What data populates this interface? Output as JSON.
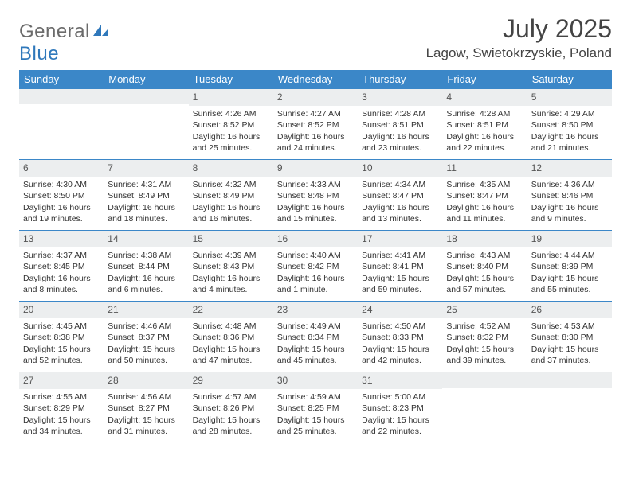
{
  "brand": {
    "general": "General",
    "blue": "Blue"
  },
  "title": "July 2025",
  "location": "Lagow, Swietokrzyskie, Poland",
  "colors": {
    "header_bg": "#3b87c8",
    "header_text": "#ffffff",
    "daynum_bg": "#eceeef",
    "rule": "#3b87c8",
    "logo_gray": "#6b6b6b",
    "logo_blue": "#2f78bb"
  },
  "weekdays": [
    "Sunday",
    "Monday",
    "Tuesday",
    "Wednesday",
    "Thursday",
    "Friday",
    "Saturday"
  ],
  "weeks": [
    [
      null,
      null,
      {
        "n": "1",
        "sr": "Sunrise: 4:26 AM",
        "ss": "Sunset: 8:52 PM",
        "dl": "Daylight: 16 hours and 25 minutes."
      },
      {
        "n": "2",
        "sr": "Sunrise: 4:27 AM",
        "ss": "Sunset: 8:52 PM",
        "dl": "Daylight: 16 hours and 24 minutes."
      },
      {
        "n": "3",
        "sr": "Sunrise: 4:28 AM",
        "ss": "Sunset: 8:51 PM",
        "dl": "Daylight: 16 hours and 23 minutes."
      },
      {
        "n": "4",
        "sr": "Sunrise: 4:28 AM",
        "ss": "Sunset: 8:51 PM",
        "dl": "Daylight: 16 hours and 22 minutes."
      },
      {
        "n": "5",
        "sr": "Sunrise: 4:29 AM",
        "ss": "Sunset: 8:50 PM",
        "dl": "Daylight: 16 hours and 21 minutes."
      }
    ],
    [
      {
        "n": "6",
        "sr": "Sunrise: 4:30 AM",
        "ss": "Sunset: 8:50 PM",
        "dl": "Daylight: 16 hours and 19 minutes."
      },
      {
        "n": "7",
        "sr": "Sunrise: 4:31 AM",
        "ss": "Sunset: 8:49 PM",
        "dl": "Daylight: 16 hours and 18 minutes."
      },
      {
        "n": "8",
        "sr": "Sunrise: 4:32 AM",
        "ss": "Sunset: 8:49 PM",
        "dl": "Daylight: 16 hours and 16 minutes."
      },
      {
        "n": "9",
        "sr": "Sunrise: 4:33 AM",
        "ss": "Sunset: 8:48 PM",
        "dl": "Daylight: 16 hours and 15 minutes."
      },
      {
        "n": "10",
        "sr": "Sunrise: 4:34 AM",
        "ss": "Sunset: 8:47 PM",
        "dl": "Daylight: 16 hours and 13 minutes."
      },
      {
        "n": "11",
        "sr": "Sunrise: 4:35 AM",
        "ss": "Sunset: 8:47 PM",
        "dl": "Daylight: 16 hours and 11 minutes."
      },
      {
        "n": "12",
        "sr": "Sunrise: 4:36 AM",
        "ss": "Sunset: 8:46 PM",
        "dl": "Daylight: 16 hours and 9 minutes."
      }
    ],
    [
      {
        "n": "13",
        "sr": "Sunrise: 4:37 AM",
        "ss": "Sunset: 8:45 PM",
        "dl": "Daylight: 16 hours and 8 minutes."
      },
      {
        "n": "14",
        "sr": "Sunrise: 4:38 AM",
        "ss": "Sunset: 8:44 PM",
        "dl": "Daylight: 16 hours and 6 minutes."
      },
      {
        "n": "15",
        "sr": "Sunrise: 4:39 AM",
        "ss": "Sunset: 8:43 PM",
        "dl": "Daylight: 16 hours and 4 minutes."
      },
      {
        "n": "16",
        "sr": "Sunrise: 4:40 AM",
        "ss": "Sunset: 8:42 PM",
        "dl": "Daylight: 16 hours and 1 minute."
      },
      {
        "n": "17",
        "sr": "Sunrise: 4:41 AM",
        "ss": "Sunset: 8:41 PM",
        "dl": "Daylight: 15 hours and 59 minutes."
      },
      {
        "n": "18",
        "sr": "Sunrise: 4:43 AM",
        "ss": "Sunset: 8:40 PM",
        "dl": "Daylight: 15 hours and 57 minutes."
      },
      {
        "n": "19",
        "sr": "Sunrise: 4:44 AM",
        "ss": "Sunset: 8:39 PM",
        "dl": "Daylight: 15 hours and 55 minutes."
      }
    ],
    [
      {
        "n": "20",
        "sr": "Sunrise: 4:45 AM",
        "ss": "Sunset: 8:38 PM",
        "dl": "Daylight: 15 hours and 52 minutes."
      },
      {
        "n": "21",
        "sr": "Sunrise: 4:46 AM",
        "ss": "Sunset: 8:37 PM",
        "dl": "Daylight: 15 hours and 50 minutes."
      },
      {
        "n": "22",
        "sr": "Sunrise: 4:48 AM",
        "ss": "Sunset: 8:36 PM",
        "dl": "Daylight: 15 hours and 47 minutes."
      },
      {
        "n": "23",
        "sr": "Sunrise: 4:49 AM",
        "ss": "Sunset: 8:34 PM",
        "dl": "Daylight: 15 hours and 45 minutes."
      },
      {
        "n": "24",
        "sr": "Sunrise: 4:50 AM",
        "ss": "Sunset: 8:33 PM",
        "dl": "Daylight: 15 hours and 42 minutes."
      },
      {
        "n": "25",
        "sr": "Sunrise: 4:52 AM",
        "ss": "Sunset: 8:32 PM",
        "dl": "Daylight: 15 hours and 39 minutes."
      },
      {
        "n": "26",
        "sr": "Sunrise: 4:53 AM",
        "ss": "Sunset: 8:30 PM",
        "dl": "Daylight: 15 hours and 37 minutes."
      }
    ],
    [
      {
        "n": "27",
        "sr": "Sunrise: 4:55 AM",
        "ss": "Sunset: 8:29 PM",
        "dl": "Daylight: 15 hours and 34 minutes."
      },
      {
        "n": "28",
        "sr": "Sunrise: 4:56 AM",
        "ss": "Sunset: 8:27 PM",
        "dl": "Daylight: 15 hours and 31 minutes."
      },
      {
        "n": "29",
        "sr": "Sunrise: 4:57 AM",
        "ss": "Sunset: 8:26 PM",
        "dl": "Daylight: 15 hours and 28 minutes."
      },
      {
        "n": "30",
        "sr": "Sunrise: 4:59 AM",
        "ss": "Sunset: 8:25 PM",
        "dl": "Daylight: 15 hours and 25 minutes."
      },
      {
        "n": "31",
        "sr": "Sunrise: 5:00 AM",
        "ss": "Sunset: 8:23 PM",
        "dl": "Daylight: 15 hours and 22 minutes."
      },
      null,
      null
    ]
  ]
}
